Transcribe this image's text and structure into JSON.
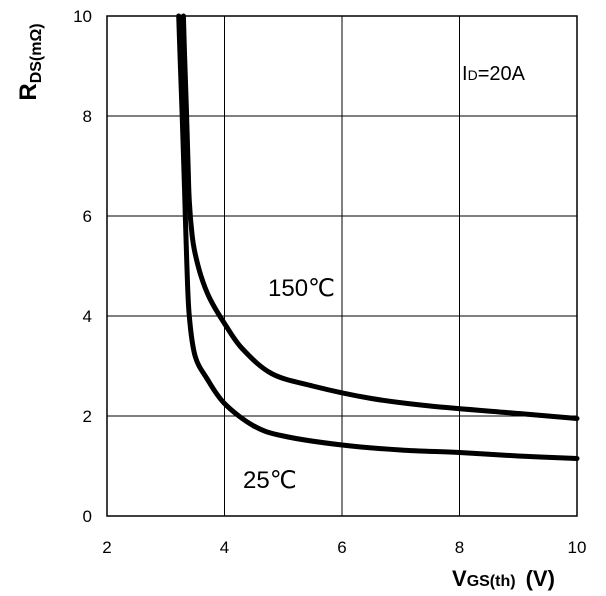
{
  "chart_data": {
    "type": "line",
    "xlim": [
      2,
      10
    ],
    "ylim": [
      0,
      10
    ],
    "x_ticks": [
      "2",
      "4",
      "6",
      "8",
      "10"
    ],
    "y_ticks": [
      "0",
      "2",
      "4",
      "6",
      "8",
      "10"
    ],
    "grid": true,
    "ylabel": {
      "main": "R",
      "sub": "DS(mΩ)"
    },
    "xlabel": {
      "main": "V",
      "sub": "GS(th)",
      "unit": "(V)"
    },
    "annotations": {
      "condition": {
        "main": "I",
        "sub": "D",
        "rest": "=20A"
      },
      "curve_150": "150℃",
      "curve_25": "25℃"
    },
    "series": [
      {
        "x": [
          3.3,
          3.32,
          3.35,
          3.38,
          3.4,
          3.45,
          3.5,
          3.6,
          3.75,
          4.0,
          4.3,
          4.8,
          5.5,
          6.5,
          7.5,
          9.0,
          10.0
        ],
        "y": [
          10.0,
          9.2,
          8.2,
          7.0,
          6.3,
          5.6,
          5.25,
          4.8,
          4.35,
          3.85,
          3.35,
          2.85,
          2.6,
          2.35,
          2.2,
          2.05,
          1.95
        ]
      },
      {
        "x": [
          3.22,
          3.25,
          3.28,
          3.32,
          3.36,
          3.4,
          3.5,
          3.7,
          4.0,
          4.5,
          5.0,
          6.0,
          7.0,
          8.0,
          9.0,
          10.0
        ],
        "y": [
          10.0,
          9.0,
          8.0,
          6.5,
          5.0,
          4.0,
          3.2,
          2.75,
          2.25,
          1.8,
          1.6,
          1.42,
          1.32,
          1.27,
          1.2,
          1.15
        ]
      }
    ]
  }
}
